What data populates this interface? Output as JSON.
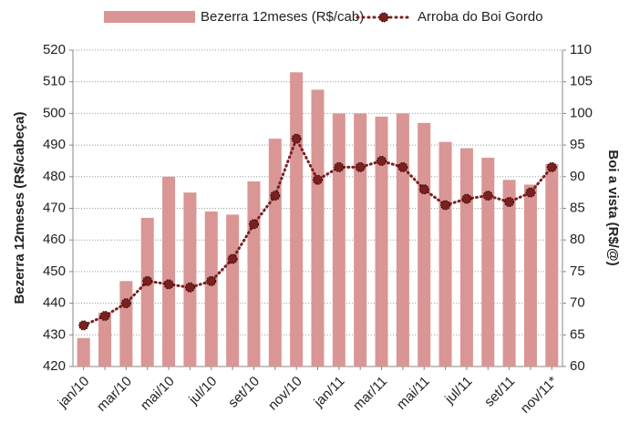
{
  "chart_data": {
    "type": "bar_line",
    "categories": [
      "jan/10",
      null,
      "mar/10",
      null,
      "mai/10",
      null,
      "jul/10",
      null,
      "set/10",
      null,
      "nov/10",
      null,
      "jan/11",
      null,
      "mar/11",
      null,
      "mai/11",
      null,
      "jul/11",
      null,
      "set/11",
      null,
      "nov/11*"
    ],
    "series": [
      {
        "name": "Bezerra 12meses (R$/cab)",
        "color": "#d99694",
        "type": "bar",
        "values": [
          429,
          437,
          447,
          467,
          480,
          475,
          469,
          468,
          478.5,
          492,
          513,
          507.5,
          500,
          500,
          499,
          500,
          497,
          491,
          489,
          486,
          479,
          477.5,
          484
        ]
      },
      {
        "name": "Arroba do Boi Gordo",
        "color": "#7b1f1f",
        "type": "line",
        "axis": "y2",
        "values": [
          66.5,
          68,
          70,
          73.5,
          73,
          72.5,
          73.5,
          77,
          82.5,
          87,
          96,
          89.5,
          91.5,
          91.5,
          92.5,
          91.5,
          88,
          85.5,
          86.5,
          87,
          86,
          87.5,
          91.5
        ]
      }
    ],
    "y_label": "Bezerra 12meses (R$/cabeça)",
    "y2_label": "Boi a vista (R$/@)",
    "ylim": [
      420,
      520
    ],
    "yticks": [
      420,
      430,
      440,
      450,
      460,
      470,
      480,
      490,
      500,
      510,
      520
    ],
    "y2lim": [
      60,
      110
    ],
    "y2ticks": [
      60,
      65,
      70,
      75,
      80,
      85,
      90,
      95,
      100,
      105,
      110
    ],
    "grid": true
  }
}
